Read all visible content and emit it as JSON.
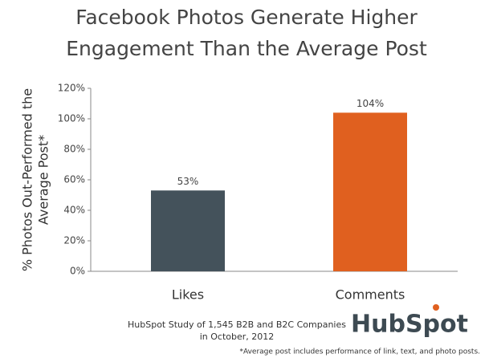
{
  "chart_data": {
    "type": "bar",
    "title": [
      "Facebook Photos Generate Higher",
      "Engagement Than the Average Post"
    ],
    "ylabel": [
      "% Photos Out-Performed the",
      "Average Post*"
    ],
    "categories": [
      "Likes",
      "Comments"
    ],
    "values": [
      53,
      104
    ],
    "value_labels": [
      "53%",
      "104%"
    ],
    "colors": [
      "#44525b",
      "#e0601f"
    ],
    "ylim": [
      0,
      120
    ],
    "yticks": [
      {
        "value": 0,
        "label": "0%"
      },
      {
        "value": 20,
        "label": "20%"
      },
      {
        "value": 40,
        "label": "40%"
      },
      {
        "value": 60,
        "label": "60%"
      },
      {
        "value": 80,
        "label": "80%"
      },
      {
        "value": 100,
        "label": "100%"
      },
      {
        "value": 120,
        "label": "120%"
      }
    ],
    "source": [
      "HubSpot Study of 1,545 B2B and B2C Companies",
      "in October, 2012"
    ],
    "logo": "HubSpot",
    "footnote": "*Average post includes performance of link, text, and photo posts."
  }
}
